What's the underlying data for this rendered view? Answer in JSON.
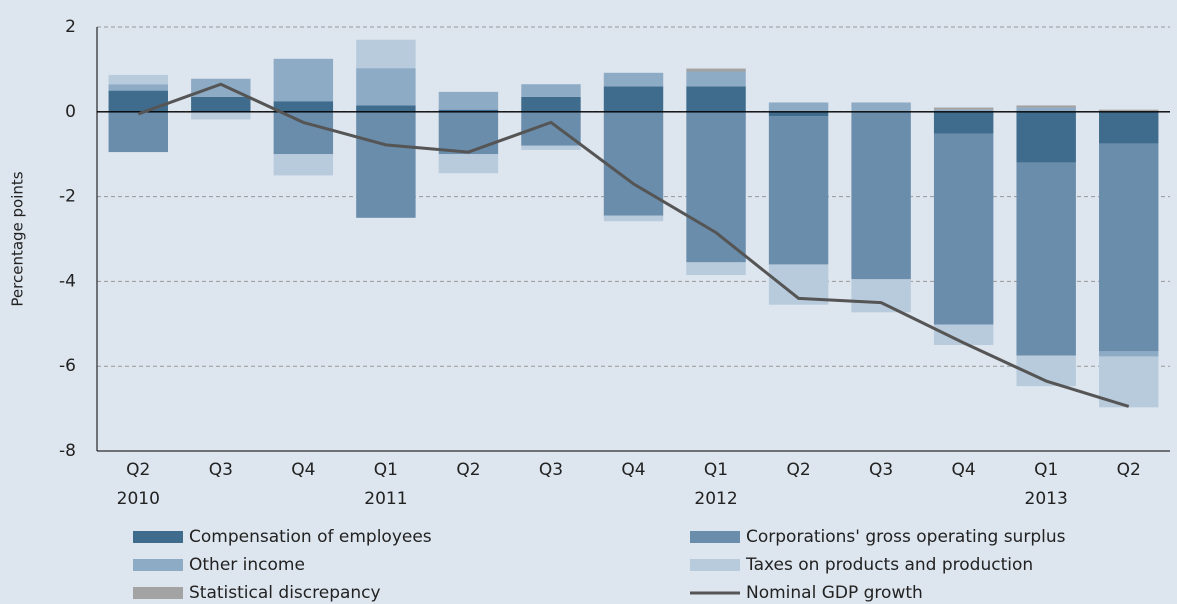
{
  "chart_data": {
    "type": "bar",
    "stacked": true,
    "y_label": "Percentage points",
    "categories": [
      "Q2 2010",
      "Q3",
      "Q4",
      "Q1 2011",
      "Q2",
      "Q3",
      "Q4",
      "Q1 2012",
      "Q2",
      "Q3",
      "Q4",
      "Q1 2013",
      "Q2"
    ],
    "series": [
      {
        "name": "Compensation of employees",
        "color": "#3f6c8d",
        "values": [
          0.5,
          0.35,
          0.25,
          0.15,
          0.05,
          0.35,
          0.6,
          0.6,
          -0.1,
          0,
          -0.52,
          -1.2,
          -0.75
        ]
      },
      {
        "name": "Corporations' gross operating surplus",
        "color": "#6a8dab",
        "values": [
          -0.95,
          0,
          -1.0,
          -2.5,
          -1.0,
          -0.8,
          -2.45,
          -3.55,
          -3.5,
          -3.95,
          -4.5,
          -4.55,
          -4.9
        ]
      },
      {
        "name": "Other income",
        "color": "#8eabc5",
        "values": [
          0.15,
          0.43,
          1.0,
          0.88,
          0.42,
          0.3,
          0.32,
          0.35,
          0.22,
          0.22,
          0.05,
          0.1,
          -0.12
        ]
      },
      {
        "name": "Taxes on products and production",
        "color": "#b8cbdc",
        "values": [
          0.22,
          -0.18,
          -0.5,
          0.67,
          -0.45,
          -0.1,
          -0.13,
          -0.3,
          -0.95,
          -0.78,
          -0.48,
          -0.72,
          -1.2
        ]
      },
      {
        "name": "Statistical discrepancy",
        "color": "#a3a3a3",
        "values": [
          0,
          0,
          0,
          0,
          0,
          0,
          0,
          0.07,
          0,
          0,
          0.05,
          0.05,
          0.05
        ]
      },
      {
        "name": "Nominal GDP growth",
        "color": "#555555",
        "type": "line",
        "values": [
          -0.05,
          0.65,
          -0.25,
          -0.78,
          -0.95,
          -0.25,
          -1.7,
          -2.85,
          -4.4,
          -4.5,
          -5.45,
          -6.35,
          -6.95
        ]
      }
    ],
    "ylim": [
      -8,
      2
    ],
    "yticks": [
      -8,
      -6,
      -4,
      -2,
      0,
      2
    ],
    "grid": true
  }
}
